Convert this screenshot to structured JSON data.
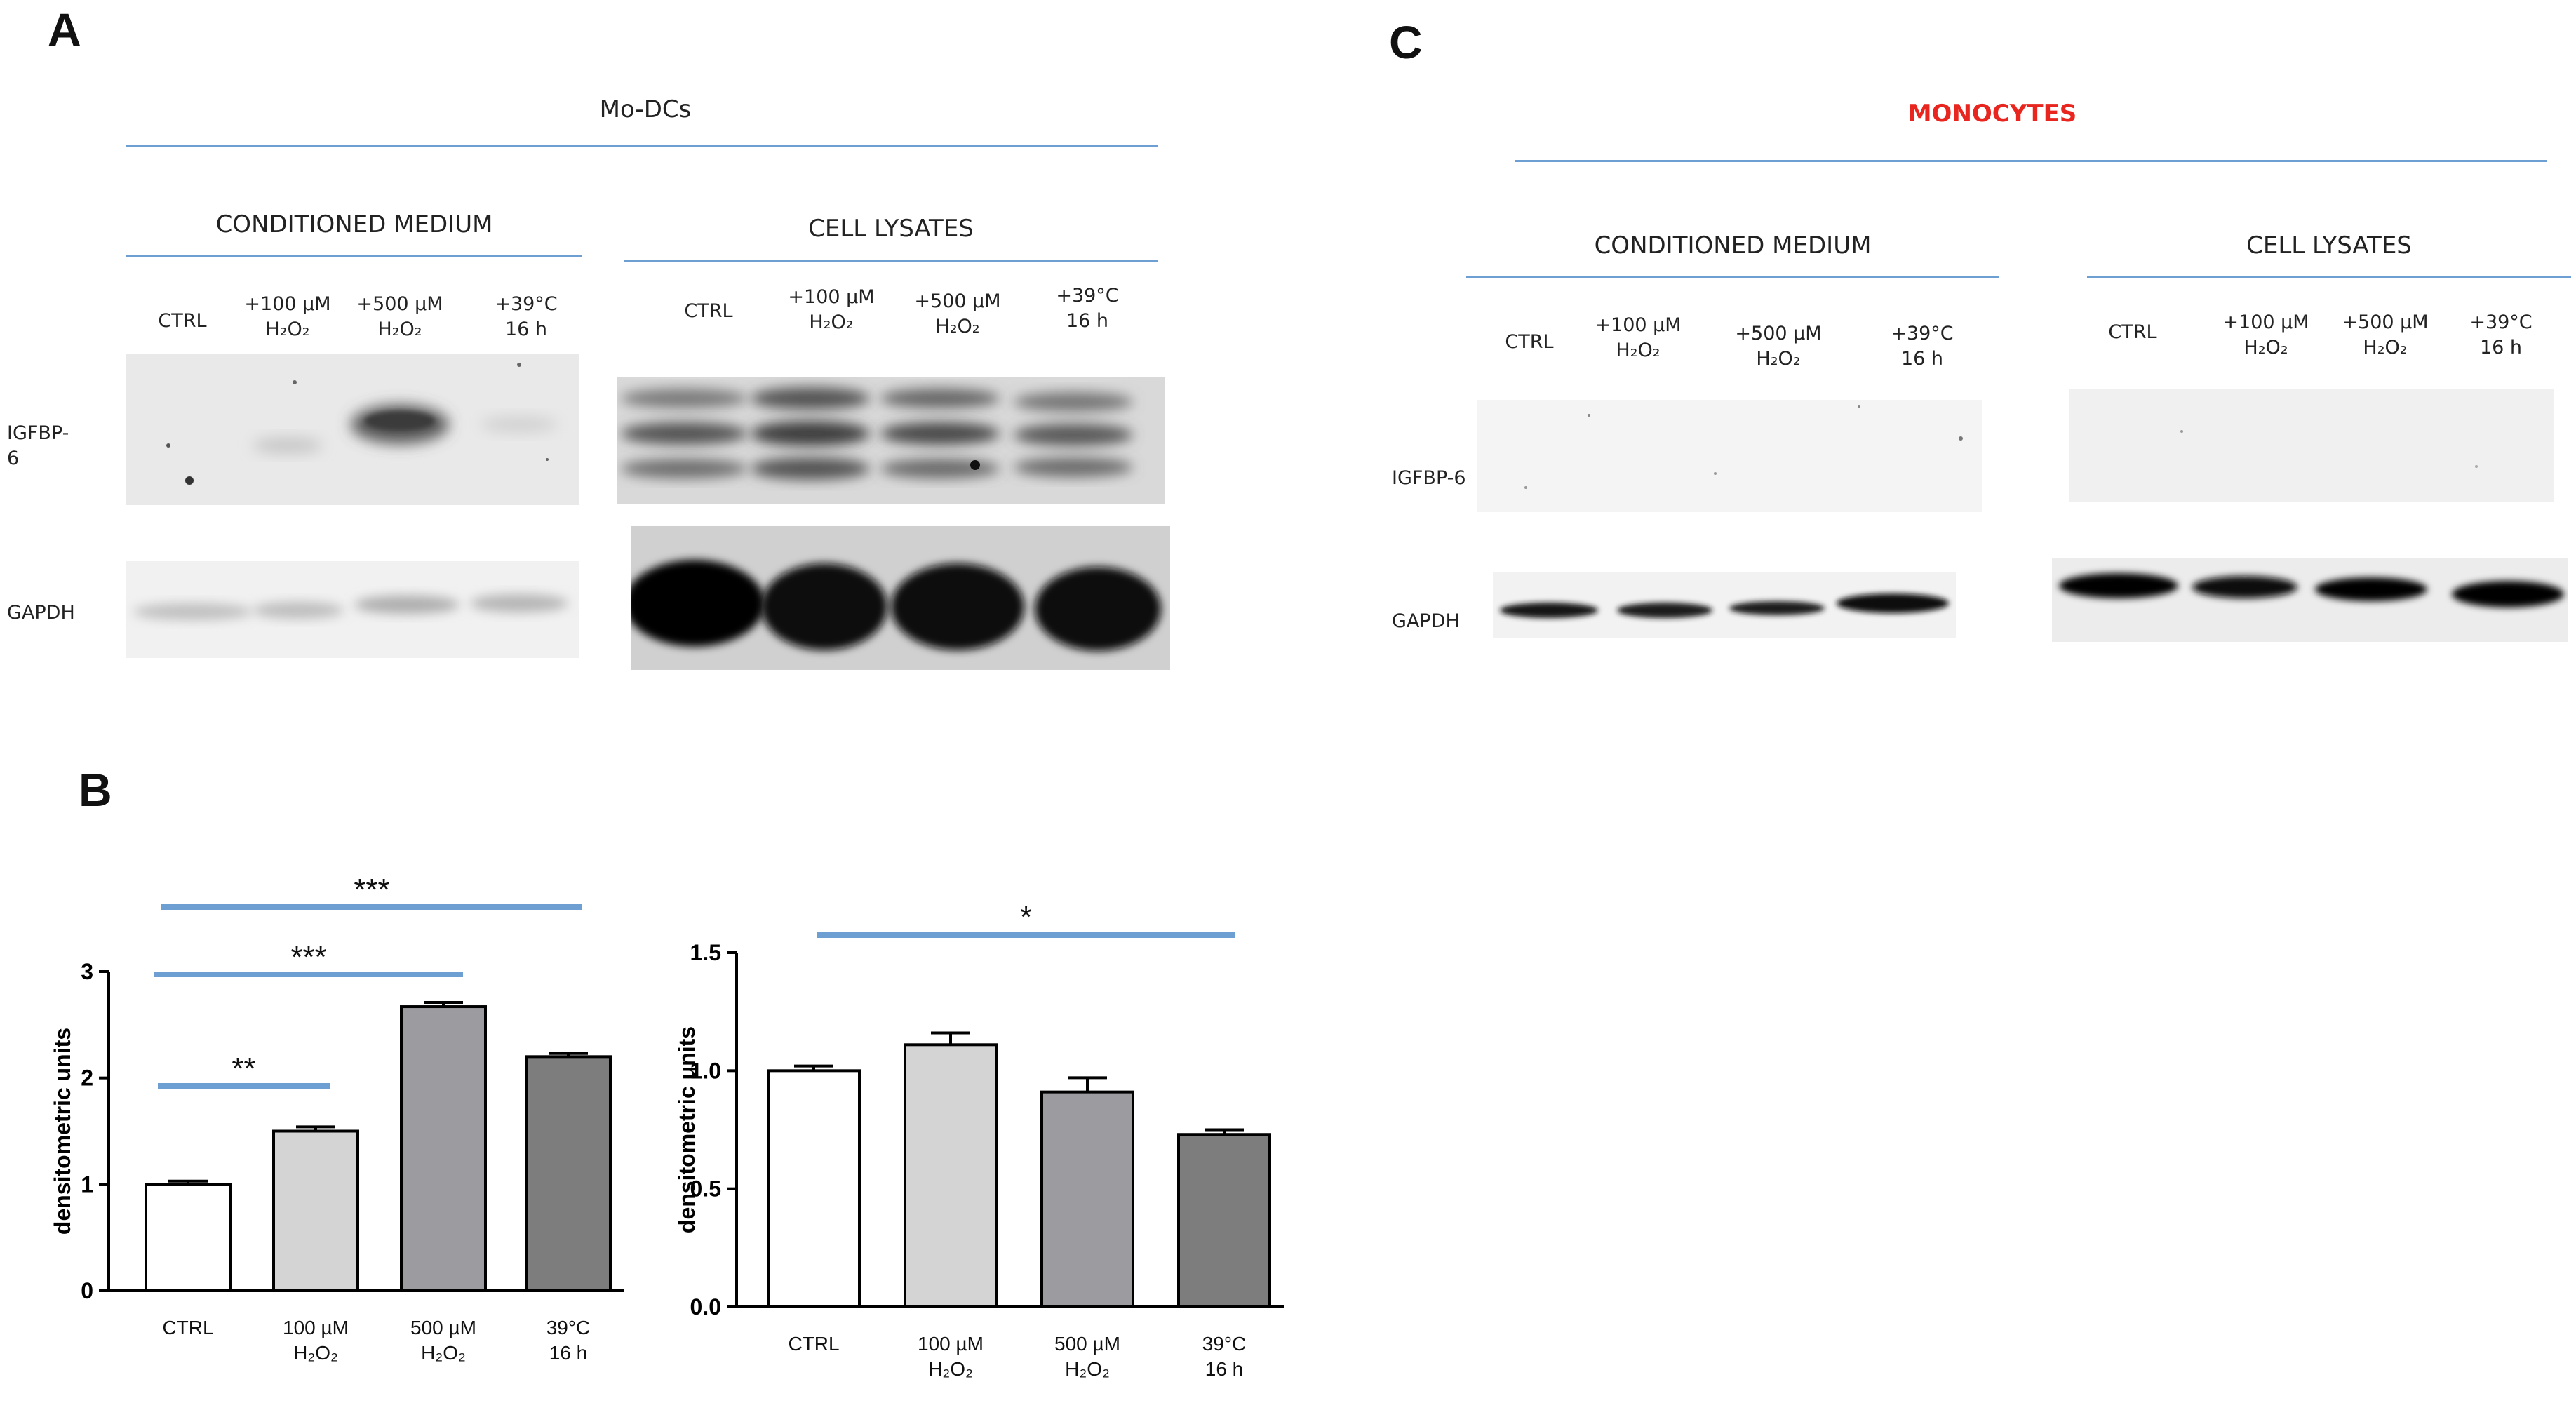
{
  "panels": {
    "a": "A",
    "b": "B",
    "c": "C"
  },
  "colors": {
    "rule": "#6e9fd3",
    "monocytes_title": "#e8261f",
    "bar_ctrl": "#ffffff",
    "bar_100": "#d4d4d4",
    "bar_500": "#9b9ba0",
    "bar_39": "#7d7d7d"
  },
  "panel_a": {
    "title": "Mo-DCs",
    "sections": {
      "conditioned": "CONDITIONED MEDIUM",
      "lysates": "CELL LYSATES"
    },
    "lanes_cm": [
      {
        "l1": "CTRL",
        "l2": ""
      },
      {
        "l1": "+100 µM",
        "l2": "H₂O₂"
      },
      {
        "l1": "+500 µM",
        "l2": "H₂O₂"
      },
      {
        "l1": "+39°C",
        "l2": "16 h"
      }
    ],
    "lanes_cl": [
      {
        "l1": "CTRL",
        "l2": ""
      },
      {
        "l1": "+100 µM",
        "l2": "H₂O₂"
      },
      {
        "l1": "+500 µM",
        "l2": "H₂O₂"
      },
      {
        "l1": "+39°C",
        "l2": "16 h"
      }
    ],
    "row_igfbp": {
      "l1": "IGFBP-",
      "l2": "6"
    },
    "row_gapdh": "GAPDH"
  },
  "panel_c": {
    "title": "MONOCYTES",
    "sections": {
      "conditioned": "CONDITIONED MEDIUM",
      "lysates": "CELL LYSATES"
    },
    "lanes_cm": [
      {
        "l1": "CTRL",
        "l2": ""
      },
      {
        "l1": "+100 µM",
        "l2": "H₂O₂"
      },
      {
        "l1": "+500 µM",
        "l2": "H₂O₂"
      },
      {
        "l1": "+39°C",
        "l2": "16 h"
      }
    ],
    "lanes_cl": [
      {
        "l1": "CTRL",
        "l2": ""
      },
      {
        "l1": "+100 µM",
        "l2": "H₂O₂"
      },
      {
        "l1": "+500 µM",
        "l2": "H₂O₂"
      },
      {
        "l1": "+39°C",
        "l2": "16 h"
      }
    ],
    "row_igfbp": "IGFBP-6",
    "row_gapdh": "GAPDH"
  },
  "chart_data": [
    {
      "type": "bar",
      "categories": [
        {
          "l1": "CTRL",
          "l2": ""
        },
        {
          "l1": "100 µM",
          "l2": "H₂O₂"
        },
        {
          "l1": "500 µM",
          "l2": "H₂O₂"
        },
        {
          "l1": "39°C",
          "l2": "16 h"
        }
      ],
      "values": [
        1.0,
        1.5,
        2.67,
        2.2
      ],
      "errors": [
        0.03,
        0.04,
        0.04,
        0.03
      ],
      "ylabel": "densitometric units",
      "ylim": [
        0,
        3
      ],
      "yticks": [
        "0",
        "1",
        "2",
        "3"
      ],
      "significance": [
        {
          "label": "**",
          "from": 0,
          "to": 1
        },
        {
          "label": "***",
          "from": 0,
          "to": 2
        },
        {
          "label": "***",
          "from": 0,
          "to": 3
        }
      ]
    },
    {
      "type": "bar",
      "categories": [
        {
          "l1": "CTRL",
          "l2": ""
        },
        {
          "l1": "100 µM",
          "l2": "H₂O₂"
        },
        {
          "l1": "500 µM",
          "l2": "H₂O₂"
        },
        {
          "l1": "39°C",
          "l2": "16 h"
        }
      ],
      "values": [
        1.0,
        1.11,
        0.91,
        0.73
      ],
      "errors": [
        0.02,
        0.05,
        0.06,
        0.02
      ],
      "ylabel": "densitometric units",
      "ylim": [
        0,
        1.5
      ],
      "yticks": [
        "0.0",
        "0.5",
        "1.0",
        "1.5"
      ],
      "significance": [
        {
          "label": "*",
          "from": 0,
          "to": 3
        }
      ]
    }
  ]
}
